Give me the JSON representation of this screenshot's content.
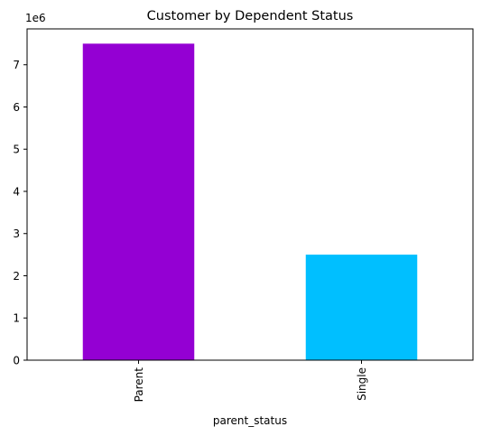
{
  "chart_data": {
    "type": "bar",
    "title": "Customer by Dependent Status",
    "xlabel": "parent_status",
    "ylabel": "",
    "categories": [
      "Parent",
      "Single"
    ],
    "values": [
      7500000,
      2500000
    ],
    "colors": [
      "#9400D3",
      "#00BFFF"
    ],
    "ylim": [
      0,
      7850000
    ],
    "y_scale_factor": 1000000,
    "y_offset_label": "1e6",
    "y_ticks": [
      0,
      1,
      2,
      3,
      4,
      5,
      6,
      7
    ],
    "x_tick_rotation": 90,
    "grid": false,
    "legend": "none"
  }
}
